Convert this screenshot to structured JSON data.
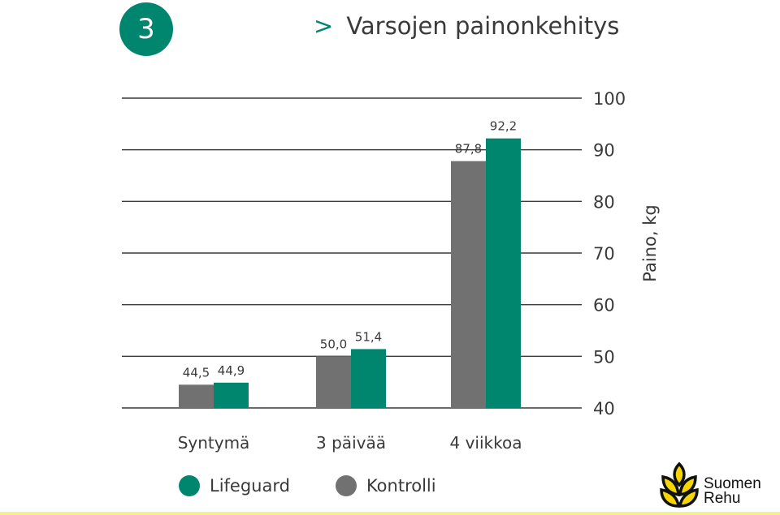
{
  "header": {
    "badge": "3",
    "chevron": ">",
    "title": "Varsojen painonkehitys"
  },
  "chart_data": {
    "type": "bar",
    "title": "Varsojen painonkehitys",
    "categories": [
      "Syntymä",
      "3 päivää",
      "4 viikkoa"
    ],
    "series": [
      {
        "name": "Kontrolli",
        "values": [
          44.5,
          50.0,
          87.8
        ],
        "labels": [
          "44,5",
          "50,0",
          "87,8"
        ],
        "color": "#717171"
      },
      {
        "name": "Lifeguard",
        "values": [
          44.9,
          51.4,
          92.2
        ],
        "labels": [
          "44,9",
          "51,4",
          "92,2"
        ],
        "color": "#00856f"
      }
    ],
    "ylabel": "Paino, kg",
    "ylim": [
      40,
      100
    ],
    "yticks": [
      40,
      50,
      60,
      70,
      80,
      90,
      100
    ],
    "grid": true,
    "y_axis_side": "right",
    "legend_position": "bottom-left"
  },
  "legend": [
    {
      "name": "Lifeguard",
      "color": "#00856f"
    },
    {
      "name": "Kontrolli",
      "color": "#717171"
    }
  ],
  "logo": {
    "line1": "Suomen",
    "line2": "Rehu",
    "icon": "wheat-sprout-icon"
  }
}
